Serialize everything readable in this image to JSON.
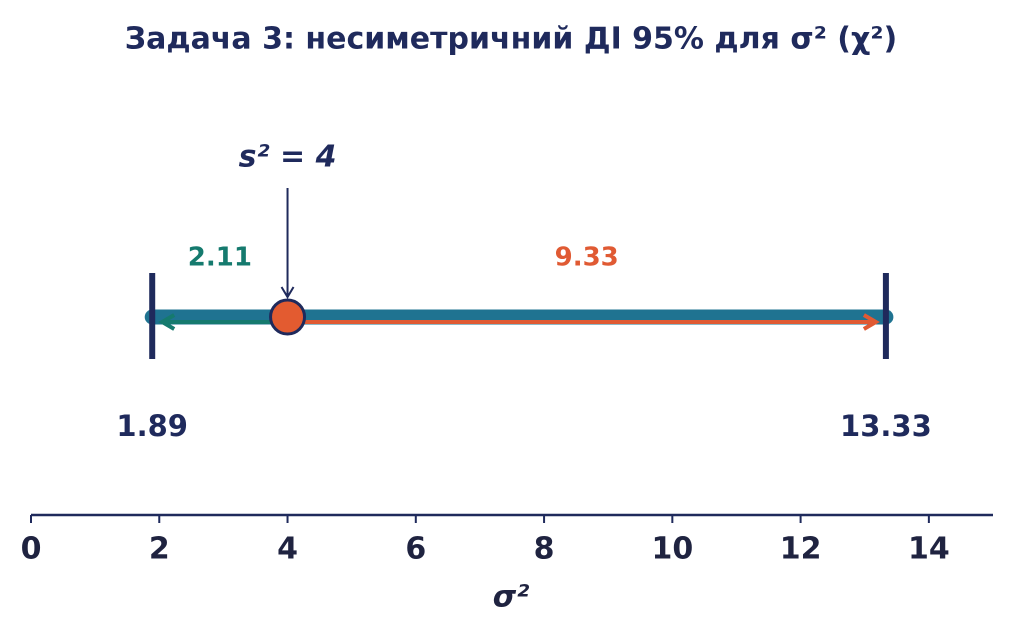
{
  "chart_data": {
    "type": "interval",
    "title": "Задача 3: несиметричний ДІ 95% для σ² (χ²)",
    "xlabel": "σ²",
    "xlim": [
      0,
      15
    ],
    "xticks": [
      0,
      2,
      4,
      6,
      8,
      10,
      12,
      14
    ],
    "interval": {
      "lower": 1.89,
      "upper": 13.33,
      "estimate": 4
    },
    "estimate_label": "s² = 4",
    "left_distance": 2.11,
    "right_distance": 9.33,
    "colors": {
      "interval": "#1f7391",
      "bounds": "#1f2a5c",
      "estimate": "#e35b30",
      "left": "#157a6e",
      "right": "#e05a33",
      "axis": "#1f2a5c"
    }
  }
}
